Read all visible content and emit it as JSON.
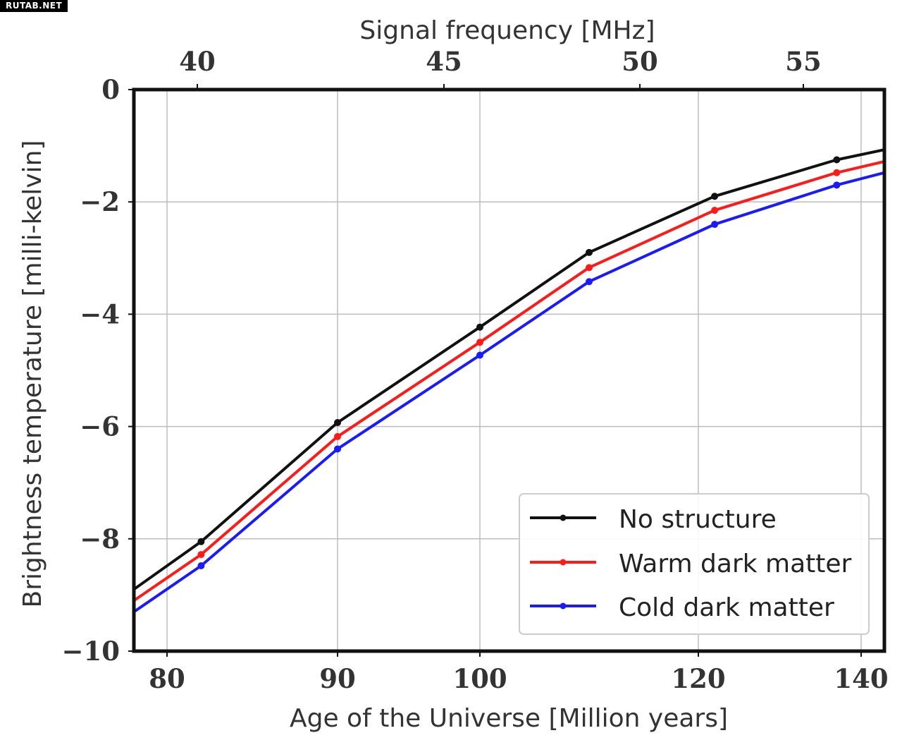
{
  "watermark": "RUTAB.NET",
  "chart_data": {
    "type": "line",
    "xlabel": "Age of the Universe [Million years]",
    "ylabel": "Brightness temperature [milli-kelvin]",
    "top_xlabel": "Signal frequency [MHz]",
    "xlim": [
      78,
      143
    ],
    "ylim": [
      -10,
      0
    ],
    "x_scale": "nonlinear",
    "x_ticks": [
      80,
      90,
      100,
      120,
      140
    ],
    "x_tick_labels": [
      "80",
      "90",
      "100",
      "120",
      "140"
    ],
    "y_ticks": [
      0,
      -2,
      -4,
      -6,
      -8,
      -10
    ],
    "y_tick_labels": [
      "0",
      "−2",
      "−4",
      "−6",
      "−8",
      "−10"
    ],
    "top_ticks": [
      "40",
      "45",
      "50",
      "55"
    ],
    "grid": true,
    "legend_position": "lower-right",
    "series": [
      {
        "name": "No structure",
        "color": "#111111",
        "x": [
          78,
          82,
          90,
          100,
          110,
          122,
          137,
          143
        ],
        "y": [
          -8.9,
          -8.05,
          -5.93,
          -4.23,
          -2.9,
          -1.9,
          -1.25,
          -1.07
        ]
      },
      {
        "name": "Warm dark matter",
        "color": "#ff1a1a",
        "x": [
          78,
          82,
          90,
          100,
          110,
          122,
          137,
          143
        ],
        "y": [
          -9.1,
          -8.28,
          -6.18,
          -4.5,
          -3.17,
          -2.15,
          -1.48,
          -1.28
        ]
      },
      {
        "name": "Cold dark matter",
        "color": "#1a1aff",
        "x": [
          78,
          82,
          90,
          100,
          110,
          122,
          137,
          143
        ],
        "y": [
          -9.3,
          -8.48,
          -6.4,
          -4.73,
          -3.42,
          -2.4,
          -1.7,
          -1.48
        ]
      }
    ]
  }
}
